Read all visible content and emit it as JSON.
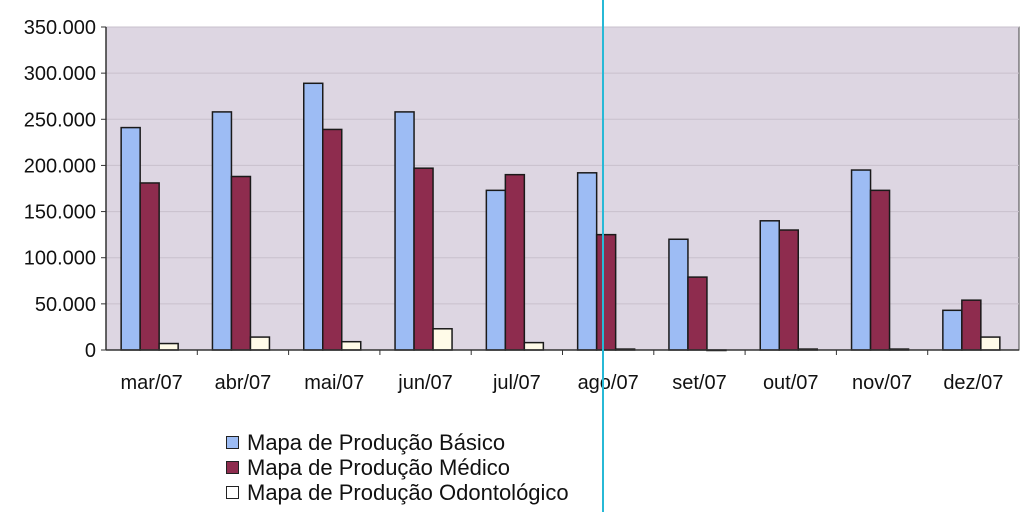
{
  "chart_data": {
    "type": "bar",
    "categories": [
      "mar/07",
      "abr/07",
      "mai/07",
      "jun/07",
      "jul/07",
      "ago/07",
      "set/07",
      "out/07",
      "nov/07",
      "dez/07"
    ],
    "series": [
      {
        "name": "Mapa de Produção Básico",
        "color": "#9dbcf4",
        "values": [
          241000,
          258000,
          289000,
          258000,
          173000,
          192000,
          120000,
          140000,
          195000,
          43000
        ]
      },
      {
        "name": "Mapa de Produção Médico",
        "color": "#8e2c4e",
        "values": [
          181000,
          188000,
          239000,
          197000,
          190000,
          125000,
          79000,
          130000,
          173000,
          54000
        ]
      },
      {
        "name": "Mapa de Produção Odontológico",
        "color": "#fffbe8",
        "values": [
          7000,
          14000,
          9000,
          23000,
          8000,
          1000,
          0,
          1000,
          1000,
          14000
        ]
      }
    ],
    "yticks": [
      "350.000",
      "300.000",
      "250.000",
      "200.000",
      "150.000",
      "100.000",
      "50.000",
      "0"
    ],
    "ylim": [
      0,
      350000
    ],
    "grid": true,
    "legend_position": "bottom"
  }
}
